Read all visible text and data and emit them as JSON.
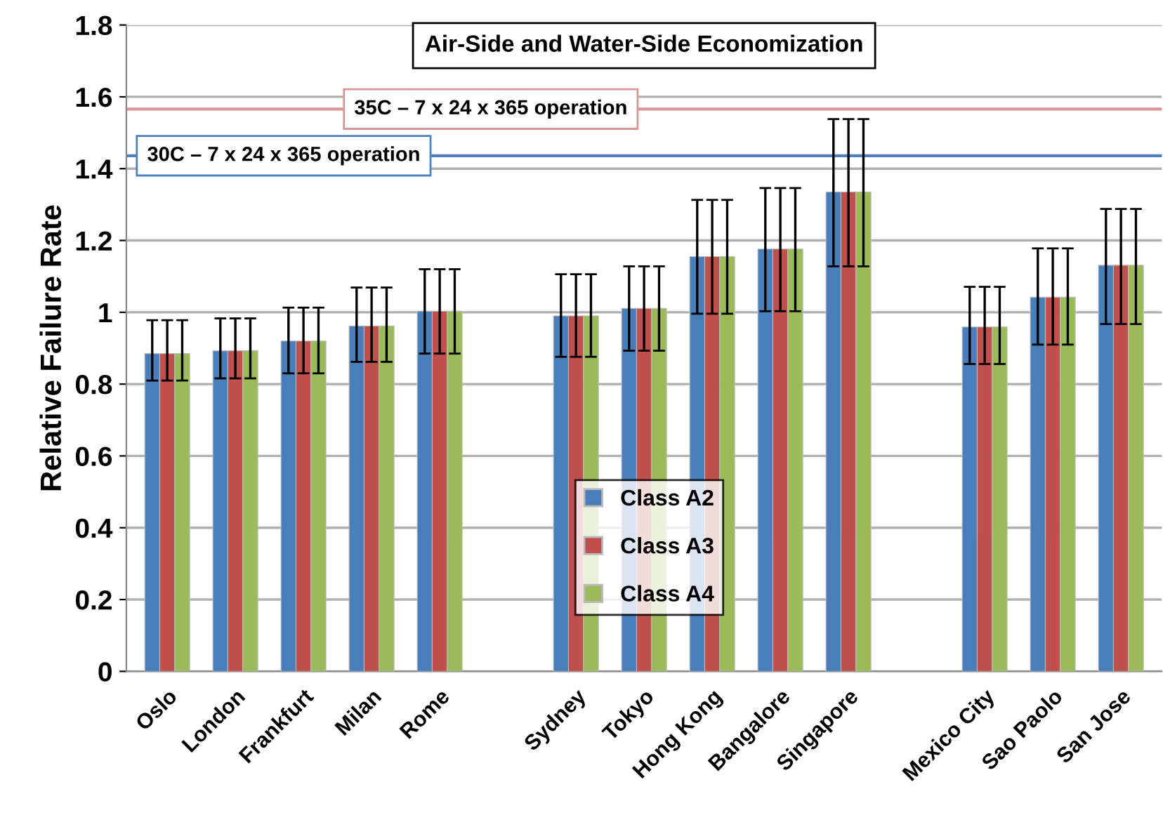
{
  "chart_data": {
    "type": "bar",
    "title": "Air-Side and Water-Side Economization",
    "ylabel": "Relative Failure Rate",
    "categories": [
      "Oslo",
      "London",
      "Frankfurt",
      "Milan",
      "Rome",
      null,
      "Sydney",
      "Tokyo",
      "Hong Kong",
      "Bangalore",
      "Singapore",
      null,
      "Mexico City",
      "Sao Paolo",
      "San Jose"
    ],
    "series": [
      {
        "name": "Class A2",
        "color": "#4a7ebb",
        "values": [
          0.885,
          0.893,
          0.92,
          0.962,
          1.003,
          null,
          0.99,
          1.011,
          1.155,
          1.176,
          1.335,
          null,
          0.959,
          1.042,
          1.131
        ],
        "errors": [
          [
            0.81,
            0.978
          ],
          [
            0.816,
            0.983
          ],
          [
            0.83,
            1.013
          ],
          [
            0.862,
            1.069
          ],
          [
            0.885,
            1.12
          ],
          null,
          [
            0.876,
            1.106
          ],
          [
            0.893,
            1.128
          ],
          [
            0.996,
            1.313
          ],
          [
            1.003,
            1.346
          ],
          [
            1.128,
            1.538
          ],
          null,
          [
            0.856,
            1.071
          ],
          [
            0.91,
            1.178
          ],
          [
            0.967,
            1.288
          ]
        ]
      },
      {
        "name": "Class A3",
        "color": "#c0504d",
        "values": [
          0.885,
          0.893,
          0.92,
          0.962,
          1.003,
          null,
          0.99,
          1.011,
          1.155,
          1.176,
          1.335,
          null,
          0.959,
          1.042,
          1.131
        ],
        "errors": [
          [
            0.81,
            0.978
          ],
          [
            0.816,
            0.983
          ],
          [
            0.83,
            1.013
          ],
          [
            0.862,
            1.069
          ],
          [
            0.885,
            1.12
          ],
          null,
          [
            0.876,
            1.106
          ],
          [
            0.893,
            1.128
          ],
          [
            0.996,
            1.313
          ],
          [
            1.003,
            1.346
          ],
          [
            1.128,
            1.538
          ],
          null,
          [
            0.856,
            1.071
          ],
          [
            0.91,
            1.178
          ],
          [
            0.967,
            1.288
          ]
        ]
      },
      {
        "name": "Class A4",
        "color": "#9bbb59",
        "values": [
          0.885,
          0.893,
          0.92,
          0.962,
          1.003,
          null,
          0.99,
          1.011,
          1.155,
          1.176,
          1.335,
          null,
          0.959,
          1.042,
          1.131
        ],
        "errors": [
          [
            0.81,
            0.978
          ],
          [
            0.816,
            0.983
          ],
          [
            0.83,
            1.013
          ],
          [
            0.862,
            1.069
          ],
          [
            0.885,
            1.12
          ],
          null,
          [
            0.876,
            1.106
          ],
          [
            0.893,
            1.128
          ],
          [
            0.996,
            1.313
          ],
          [
            1.003,
            1.346
          ],
          [
            1.128,
            1.538
          ],
          null,
          [
            0.856,
            1.071
          ],
          [
            0.91,
            1.178
          ],
          [
            0.967,
            1.288
          ]
        ]
      }
    ],
    "ylim": [
      0,
      1.8
    ],
    "yticks": [
      0,
      0.2,
      0.4,
      0.6,
      0.8,
      1,
      1.2,
      1.4,
      1.6,
      1.8
    ],
    "ref_lines": [
      {
        "axis": "y",
        "value": 1.566,
        "label": "35C – 7 x 24 x 365 operation",
        "color": "#d99694"
      },
      {
        "axis": "y",
        "value": 1.436,
        "label": "30C – 7 x 24 x 365 operation",
        "color": "#4f81bd"
      }
    ],
    "grid": "y",
    "legend": "bottom"
  }
}
